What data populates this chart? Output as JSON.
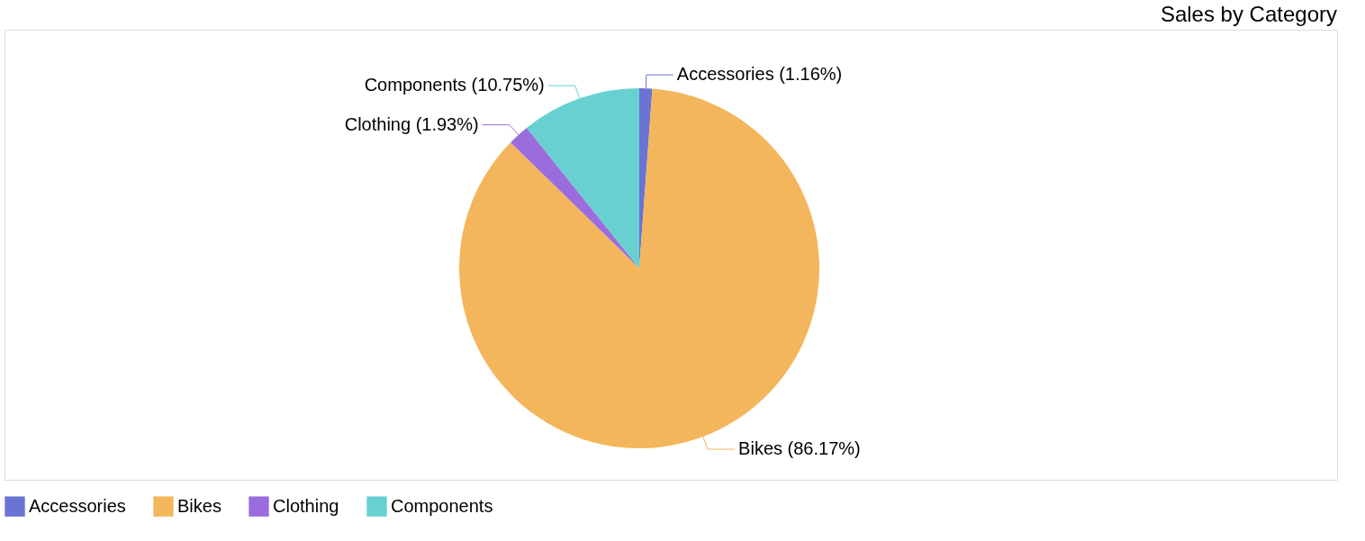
{
  "chart_data": {
    "type": "pie",
    "title": "Sales by Category",
    "categories": [
      "Accessories",
      "Bikes",
      "Clothing",
      "Components"
    ],
    "values": [
      1.16,
      86.17,
      1.93,
      10.75
    ],
    "colors": [
      "#6b73d3",
      "#f4b65c",
      "#9b6ddc",
      "#69d0d2"
    ],
    "value_labels": [
      "Accessories (1.16%)",
      "Bikes (86.17%)",
      "Clothing (1.93%)",
      "Components (10.75%)"
    ],
    "legend": "bottom"
  }
}
